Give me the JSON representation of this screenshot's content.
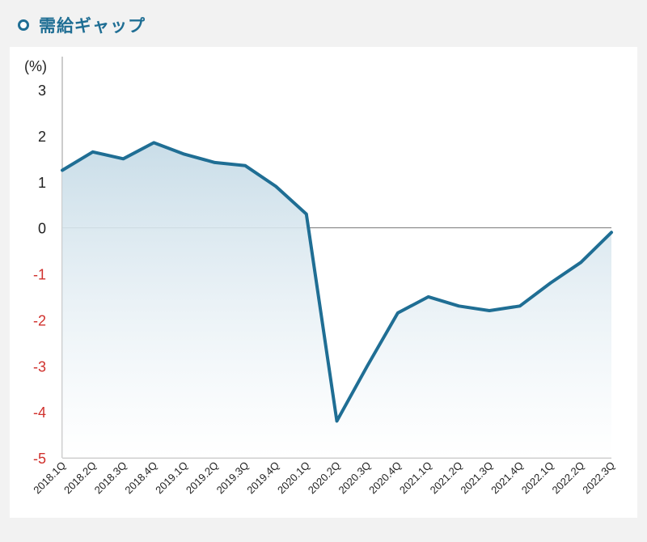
{
  "header": {
    "title": "需給ギャップ"
  },
  "colors": {
    "line": "#1f6e94",
    "negative_tick": "#d0312d",
    "positive_tick": "#222222",
    "fill_top": "#c9dde8"
  },
  "chart_data": {
    "type": "area",
    "title": "需給ギャップ",
    "ylabel": "(%)",
    "xlabel": "",
    "ylim": [
      -5,
      3
    ],
    "yticks": [
      3,
      2,
      1,
      0,
      -1,
      -2,
      -3,
      -4,
      -5
    ],
    "grid": false,
    "categories": [
      "2018.1Q",
      "2018.2Q",
      "2018.3Q",
      "2018.4Q",
      "2019.1Q",
      "2019.2Q",
      "2019.3Q",
      "2019.4Q",
      "2020.1Q",
      "2020.2Q",
      "2020.3Q",
      "2020.4Q",
      "2021.1Q",
      "2021.2Q",
      "2021.3Q",
      "2021.4Q",
      "2022.1Q",
      "2022.2Q",
      "2022.3Q"
    ],
    "values": [
      1.25,
      1.65,
      1.5,
      1.85,
      1.6,
      1.42,
      1.35,
      0.9,
      0.3,
      -4.2,
      -3.0,
      -1.85,
      -1.5,
      -1.7,
      -1.8,
      -1.7,
      -1.2,
      -0.75,
      -0.1
    ]
  }
}
